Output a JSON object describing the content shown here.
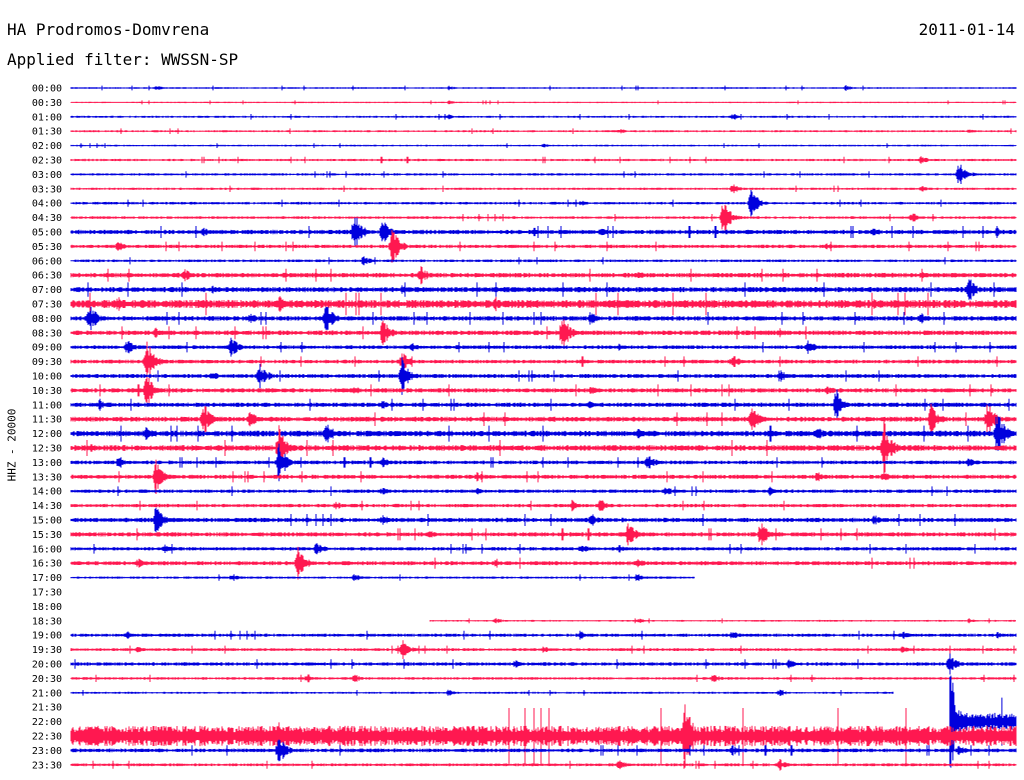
{
  "header": {
    "station": "HA Prodromos-Domvrena",
    "date": "2011-01-14",
    "filter": "Applied filter: WWSSN-SP"
  },
  "chart_data": {
    "type": "line",
    "title": "HA Prodromos-Domvrena",
    "ylabel": "HHZ - 20000",
    "colors": [
      "#0000dd",
      "#ff1850"
    ],
    "rows": [
      {
        "label": "00:00",
        "start": 0,
        "end": 1,
        "noise": 0.6,
        "events": [
          [
            0.09,
            3
          ],
          [
            0.4,
            2.5
          ],
          [
            0.82,
            3
          ]
        ]
      },
      {
        "label": "00:30",
        "start": 0,
        "end": 1,
        "noise": 0.5,
        "events": [
          [
            0.4,
            2
          ]
        ]
      },
      {
        "label": "01:00",
        "start": 0,
        "end": 1,
        "noise": 0.7,
        "events": [
          [
            0.4,
            2.5
          ],
          [
            0.7,
            3
          ]
        ]
      },
      {
        "label": "01:30",
        "start": 0,
        "end": 1,
        "noise": 0.7,
        "events": [
          [
            0.58,
            3
          ],
          [
            0.95,
            2.5
          ]
        ]
      },
      {
        "label": "02:00",
        "start": 0,
        "end": 1,
        "noise": 0.6,
        "events": [
          [
            0.5,
            2
          ]
        ]
      },
      {
        "label": "02:30",
        "start": 0,
        "end": 1,
        "noise": 0.8,
        "events": [
          [
            0.9,
            5
          ]
        ]
      },
      {
        "label": "03:00",
        "start": 0,
        "end": 1,
        "noise": 0.8,
        "events": [
          [
            0.94,
            14
          ]
        ]
      },
      {
        "label": "03:30",
        "start": 0,
        "end": 1,
        "noise": 0.8,
        "events": [
          [
            0.7,
            6
          ],
          [
            0.9,
            4
          ]
        ]
      },
      {
        "label": "04:00",
        "start": 0,
        "end": 1,
        "noise": 0.9,
        "events": [
          [
            0.54,
            3
          ],
          [
            0.72,
            16
          ]
        ]
      },
      {
        "label": "04:30",
        "start": 0,
        "end": 1,
        "noise": 0.9,
        "events": [
          [
            0.69,
            20
          ],
          [
            0.89,
            6
          ]
        ]
      },
      {
        "label": "05:00",
        "start": 0,
        "end": 1,
        "noise": 1.5,
        "events": [
          [
            0.14,
            5
          ],
          [
            0.3,
            22
          ],
          [
            0.33,
            14
          ],
          [
            0.49,
            6
          ],
          [
            0.56,
            6
          ],
          [
            0.85,
            5
          ],
          [
            0.98,
            5
          ]
        ]
      },
      {
        "label": "05:30",
        "start": 0,
        "end": 1,
        "noise": 1.2,
        "events": [
          [
            0.05,
            6
          ],
          [
            0.34,
            20
          ],
          [
            0.8,
            4
          ]
        ]
      },
      {
        "label": "06:00",
        "start": 0,
        "end": 1,
        "noise": 0.9,
        "events": [
          [
            0.31,
            6
          ]
        ]
      },
      {
        "label": "06:30",
        "start": 0,
        "end": 1,
        "noise": 1.6,
        "events": [
          [
            0.12,
            8
          ],
          [
            0.37,
            10
          ],
          [
            0.6,
            5
          ],
          [
            0.9,
            5
          ]
        ]
      },
      {
        "label": "07:00",
        "start": 0,
        "end": 1,
        "noise": 1.8,
        "events": [
          [
            0.15,
            5
          ],
          [
            0.35,
            5
          ],
          [
            0.95,
            14
          ]
        ]
      },
      {
        "label": "07:30",
        "start": 0,
        "end": 1,
        "noise": 2.8,
        "events": [
          [
            0.05,
            8
          ],
          [
            0.22,
            10
          ],
          [
            0.45,
            8
          ],
          [
            0.85,
            8
          ]
        ]
      },
      {
        "label": "08:00",
        "start": 0,
        "end": 1,
        "noise": 1.6,
        "events": [
          [
            0.02,
            16
          ],
          [
            0.19,
            6
          ],
          [
            0.27,
            18
          ],
          [
            0.55,
            8
          ],
          [
            0.9,
            6
          ]
        ]
      },
      {
        "label": "08:30",
        "start": 0,
        "end": 1,
        "noise": 1.6,
        "events": [
          [
            0.09,
            6
          ],
          [
            0.33,
            16
          ],
          [
            0.52,
            20
          ],
          [
            0.75,
            5
          ]
        ]
      },
      {
        "label": "09:00",
        "start": 0,
        "end": 1,
        "noise": 1.3,
        "events": [
          [
            0.06,
            10
          ],
          [
            0.17,
            12
          ],
          [
            0.36,
            6
          ],
          [
            0.58,
            4
          ],
          [
            0.78,
            8
          ]
        ]
      },
      {
        "label": "09:30",
        "start": 0,
        "end": 1,
        "noise": 1.3,
        "events": [
          [
            0.08,
            24
          ],
          [
            0.35,
            12
          ],
          [
            0.7,
            8
          ]
        ]
      },
      {
        "label": "10:00",
        "start": 0,
        "end": 1,
        "noise": 1.4,
        "events": [
          [
            0.15,
            5
          ],
          [
            0.2,
            14
          ],
          [
            0.35,
            20
          ],
          [
            0.75,
            8
          ]
        ]
      },
      {
        "label": "10:30",
        "start": 0,
        "end": 1,
        "noise": 1.5,
        "events": [
          [
            0.08,
            18
          ],
          [
            0.3,
            5
          ],
          [
            0.55,
            5
          ],
          [
            0.8,
            6
          ]
        ]
      },
      {
        "label": "11:00",
        "start": 0,
        "end": 1,
        "noise": 1.5,
        "events": [
          [
            0.03,
            5
          ],
          [
            0.33,
            5
          ],
          [
            0.55,
            6
          ],
          [
            0.81,
            18
          ]
        ]
      },
      {
        "label": "11:30",
        "start": 0,
        "end": 1,
        "noise": 1.7,
        "events": [
          [
            0.14,
            20
          ],
          [
            0.19,
            10
          ],
          [
            0.72,
            14
          ],
          [
            0.91,
            18
          ],
          [
            0.97,
            18
          ]
        ]
      },
      {
        "label": "12:00",
        "start": 0,
        "end": 1,
        "noise": 2.0,
        "events": [
          [
            0.08,
            8
          ],
          [
            0.27,
            14
          ],
          [
            0.6,
            6
          ],
          [
            0.79,
            8
          ],
          [
            0.98,
            26
          ]
        ]
      },
      {
        "label": "12:30",
        "start": 0,
        "end": 1,
        "noise": 2.0,
        "events": [
          [
            0.02,
            6
          ],
          [
            0.22,
            24
          ],
          [
            0.86,
            30
          ]
        ]
      },
      {
        "label": "13:00",
        "start": 0,
        "end": 1,
        "noise": 1.3,
        "events": [
          [
            0.05,
            6
          ],
          [
            0.22,
            22
          ],
          [
            0.33,
            6
          ],
          [
            0.61,
            10
          ],
          [
            0.95,
            6
          ]
        ]
      },
      {
        "label": "13:30",
        "start": 0,
        "end": 1,
        "noise": 1.4,
        "events": [
          [
            0.09,
            18
          ],
          [
            0.43,
            6
          ],
          [
            0.79,
            6
          ],
          [
            0.86,
            6
          ]
        ]
      },
      {
        "label": "14:00",
        "start": 0,
        "end": 1,
        "noise": 1.2,
        "events": [
          [
            0.33,
            5
          ],
          [
            0.43,
            5
          ],
          [
            0.63,
            6
          ],
          [
            0.74,
            5
          ]
        ]
      },
      {
        "label": "14:30",
        "start": 0,
        "end": 1,
        "noise": 1.2,
        "events": [
          [
            0.28,
            5
          ],
          [
            0.53,
            6
          ],
          [
            0.56,
            8
          ]
        ]
      },
      {
        "label": "15:00",
        "start": 0,
        "end": 1,
        "noise": 1.5,
        "events": [
          [
            0.09,
            18
          ],
          [
            0.33,
            6
          ],
          [
            0.55,
            8
          ],
          [
            0.85,
            6
          ]
        ]
      },
      {
        "label": "15:30",
        "start": 0,
        "end": 1,
        "noise": 1.5,
        "events": [
          [
            0.38,
            5
          ],
          [
            0.59,
            14
          ],
          [
            0.73,
            14
          ]
        ]
      },
      {
        "label": "16:00",
        "start": 0,
        "end": 1,
        "noise": 1.2,
        "events": [
          [
            0.1,
            6
          ],
          [
            0.26,
            8
          ],
          [
            0.54,
            6
          ],
          [
            0.58,
            5
          ]
        ]
      },
      {
        "label": "16:30",
        "start": 0,
        "end": 1,
        "noise": 1.4,
        "events": [
          [
            0.07,
            6
          ],
          [
            0.24,
            18
          ],
          [
            0.45,
            5
          ],
          [
            0.6,
            6
          ]
        ]
      },
      {
        "label": "17:00",
        "start": 0,
        "end": 0.66,
        "noise": 0.8,
        "events": [
          [
            0.17,
            5
          ],
          [
            0.3,
            5
          ],
          [
            0.6,
            4
          ]
        ]
      },
      {
        "label": "17:30",
        "start": 0,
        "end": 0,
        "noise": 0,
        "events": []
      },
      {
        "label": "18:00",
        "start": 0,
        "end": 0,
        "noise": 0,
        "events": []
      },
      {
        "label": "18:30",
        "start": 0.38,
        "end": 1,
        "noise": 0.6,
        "events": [
          [
            0.45,
            3
          ],
          [
            0.6,
            3
          ],
          [
            0.95,
            3
          ]
        ]
      },
      {
        "label": "19:00",
        "start": 0,
        "end": 1,
        "noise": 1.1,
        "events": [
          [
            0.06,
            4
          ],
          [
            0.54,
            5
          ],
          [
            0.7,
            5
          ],
          [
            0.88,
            5
          ],
          [
            0.98,
            4
          ]
        ]
      },
      {
        "label": "19:30",
        "start": 0,
        "end": 1,
        "noise": 1.0,
        "events": [
          [
            0.07,
            4
          ],
          [
            0.35,
            12
          ],
          [
            0.5,
            4
          ],
          [
            0.88,
            4
          ]
        ]
      },
      {
        "label": "20:00",
        "start": 0,
        "end": 1,
        "noise": 1.2,
        "events": [
          [
            0.47,
            5
          ],
          [
            0.76,
            5
          ],
          [
            0.93,
            12
          ]
        ]
      },
      {
        "label": "20:30",
        "start": 0,
        "end": 1,
        "noise": 0.9,
        "events": [
          [
            0.25,
            5
          ],
          [
            0.3,
            5
          ],
          [
            0.68,
            6
          ]
        ]
      },
      {
        "label": "21:00",
        "start": 0,
        "end": 0.87,
        "noise": 0.7,
        "events": [
          [
            0.4,
            4
          ],
          [
            0.75,
            4
          ]
        ]
      },
      {
        "label": "21:30",
        "start": 0,
        "end": 0,
        "noise": 0,
        "events": []
      },
      {
        "label": "22:00",
        "start": 0.93,
        "end": 1,
        "noise": 6,
        "events": [
          [
            0.93,
            60
          ]
        ]
      },
      {
        "label": "22:30",
        "start": 0,
        "end": 1,
        "noise": 7,
        "events": [
          [
            0.22,
            16
          ],
          [
            0.65,
            40
          ],
          [
            0.72,
            14
          ],
          [
            0.8,
            14
          ]
        ]
      },
      {
        "label": "23:00",
        "start": 0,
        "end": 1,
        "noise": 1.3,
        "events": [
          [
            0.22,
            16
          ],
          [
            0.7,
            6
          ],
          [
            0.94,
            6
          ]
        ]
      },
      {
        "label": "23:30",
        "start": 0,
        "end": 1,
        "noise": 1.0,
        "events": [
          [
            0.58,
            6
          ],
          [
            0.75,
            6
          ]
        ]
      }
    ]
  }
}
